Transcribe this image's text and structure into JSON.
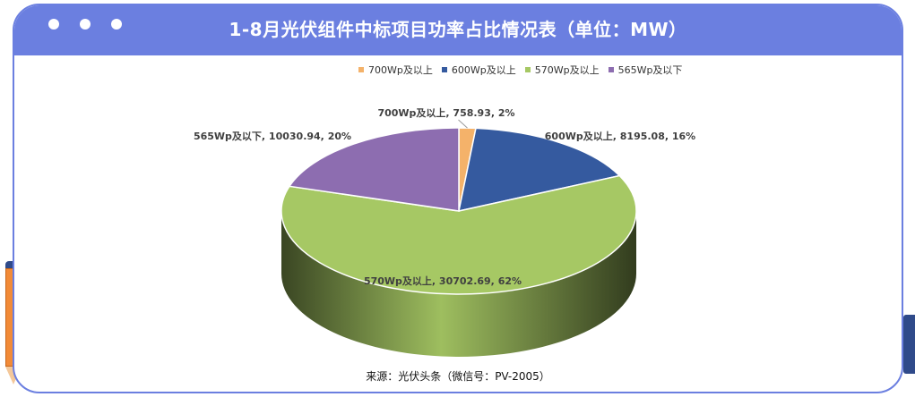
{
  "title": "1-8月光伏组件中标项目功率占比情况表（单位：MW）",
  "source": "来源：光伏头条（微信号：PV-2005）",
  "colors": {
    "frame": "#6b7fe0",
    "pen": "#f28b38",
    "clip": "#2f4a8a"
  },
  "chart_data": {
    "type": "pie",
    "style": "3d",
    "legend_position": "top",
    "categories": [
      "700Wp及以上",
      "600Wp及以上",
      "570Wp及以上",
      "565Wp及以下"
    ],
    "values": [
      758.93,
      8195.08,
      30702.69,
      10030.94
    ],
    "percents": [
      2,
      16,
      62,
      20
    ],
    "colors": [
      "#f4b26a",
      "#355a9f",
      "#a6c864",
      "#8d6db0"
    ],
    "data_labels": [
      "700Wp及以上, 758.93, 2%",
      "600Wp及以上, 8195.08, 16%",
      "570Wp及以上, 30702.69, 62%",
      "565Wp及以下, 10030.94, 20%"
    ]
  }
}
